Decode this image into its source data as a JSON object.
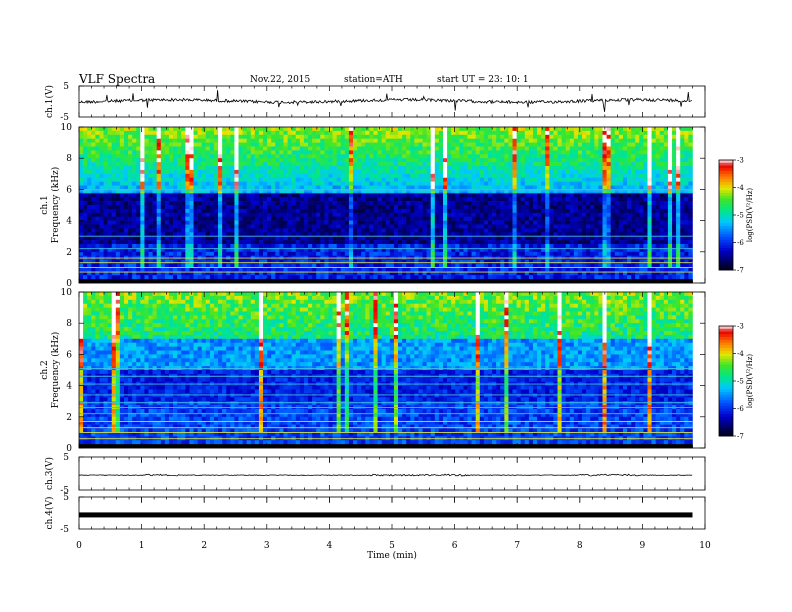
{
  "header": {
    "title": "VLF  Spectra",
    "date": "Nov.22, 2015",
    "station": "station=ATH",
    "start": "start  UT  =    23: 10: 1"
  },
  "chart_data": [
    {
      "type": "line",
      "panel": "ch1-waveform",
      "ylabel": "ch.1(V)",
      "ylim": [
        -5,
        5
      ],
      "yticks": [
        "5",
        "-5"
      ],
      "xlim": [
        0,
        10
      ]
    },
    {
      "type": "heatmap",
      "panel": "ch1-spectrogram",
      "ylabel": "ch.1\nFrequency  (kHz)",
      "ylabel_lines": [
        "ch.1",
        "Frequency  (kHz)"
      ],
      "ylim": [
        0,
        10
      ],
      "yticks": [
        "0",
        "2",
        "4",
        "6",
        "8",
        "10"
      ],
      "colorbar": {
        "label": "log(PSD(V²/Hz)",
        "ticks": [
          "-3",
          "-4",
          "-5",
          "-6",
          "-7"
        ],
        "range": [
          -7,
          -3
        ]
      }
    },
    {
      "type": "heatmap",
      "panel": "ch2-spectrogram",
      "ylabel_lines": [
        "ch.2",
        "Frequency  (kHz)"
      ],
      "ylim": [
        0,
        10
      ],
      "yticks": [
        "0",
        "2",
        "4",
        "6",
        "8",
        "10"
      ],
      "colorbar": {
        "label": "log(PSD(V²/Hz)",
        "ticks": [
          "-3",
          "-4",
          "-5",
          "-6",
          "-7"
        ],
        "range": [
          -7,
          -3
        ]
      }
    },
    {
      "type": "line",
      "panel": "ch3-waveform",
      "ylabel": "ch.3(V)",
      "yticks": [
        "5",
        "-5"
      ],
      "ylim": [
        -5,
        5
      ]
    },
    {
      "type": "line",
      "panel": "ch4-waveform",
      "ylabel": "ch.4(V)",
      "yticks": [
        "5",
        "-5"
      ],
      "ylim": [
        -5,
        5
      ]
    }
  ],
  "xaxis": {
    "label": "Time  (min)",
    "ticks": [
      "0",
      "1",
      "2",
      "3",
      "4",
      "5",
      "6",
      "7",
      "8",
      "9",
      "10"
    ],
    "xlim": [
      0,
      10
    ]
  },
  "colors": {
    "axis": "#000000",
    "trace": "#000000"
  }
}
